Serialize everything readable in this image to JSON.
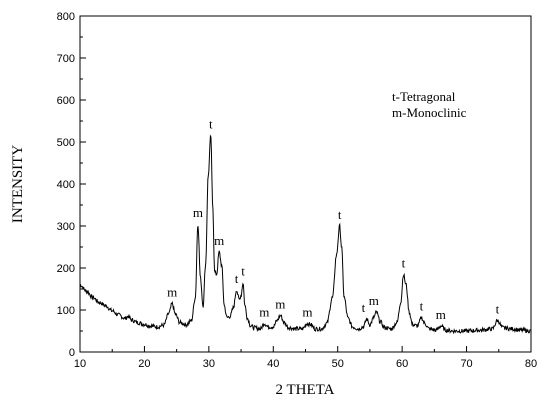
{
  "chart_data": {
    "type": "line",
    "xlabel": "2 THETA",
    "ylabel": "INTENSITY",
    "xlim": [
      10,
      80
    ],
    "ylim": [
      0,
      800
    ],
    "x_ticks": [
      "10",
      "20",
      "30",
      "40",
      "50",
      "60",
      "70",
      "80"
    ],
    "y_ticks": [
      "0",
      "100",
      "200",
      "300",
      "400",
      "500",
      "600",
      "700",
      "800"
    ],
    "legend_lines": [
      "t-Tetragonal",
      "m-Monoclinic"
    ],
    "legend_position": "top-right",
    "grid": false,
    "line_color": "#000000",
    "series": [
      {
        "x": [
          10,
          11,
          12,
          13,
          14,
          15,
          16,
          17,
          17.5,
          18,
          19,
          20,
          21,
          22,
          23,
          23.8,
          24.3,
          24.8,
          25.5,
          26.5,
          27.3,
          27.9,
          28.3,
          28.7,
          29.1,
          29.5,
          29.9,
          30.3,
          30.6,
          30.9,
          31.2,
          31.6,
          32.0,
          32.4,
          32.8,
          33.3,
          33.8,
          34.3,
          34.7,
          35.0,
          35.3,
          35.6,
          36.0,
          36.5,
          37.0,
          38.0,
          38.6,
          39.2,
          40.0,
          40.6,
          41.1,
          41.7,
          42.4,
          43.5,
          44.5,
          45.3,
          45.8,
          46.5,
          47.5,
          48.3,
          49.2,
          49.8,
          50.3,
          50.6,
          51.0,
          51.6,
          52.3,
          53.2,
          54.0,
          54.5,
          55.0,
          55.6,
          56.0,
          56.6,
          57.3,
          58.3,
          59.2,
          59.8,
          60.2,
          60.6,
          61.1,
          61.6,
          62.4,
          63.0,
          63.5,
          64.2,
          65.3,
          66.0,
          66.8,
          68.0,
          70.0,
          72.0,
          74.0,
          74.8,
          75.6,
          77.0,
          78.5,
          80.0
        ],
        "y": [
          160,
          145,
          130,
          118,
          110,
          98,
          88,
          80,
          85,
          76,
          70,
          66,
          62,
          60,
          64,
          92,
          115,
          90,
          70,
          65,
          75,
          130,
          305,
          175,
          110,
          210,
          420,
          515,
          350,
          190,
          185,
          238,
          205,
          110,
          82,
          85,
          105,
          148,
          125,
          135,
          165,
          110,
          80,
          62,
          58,
          55,
          68,
          60,
          60,
          75,
          87,
          70,
          58,
          55,
          55,
          68,
          65,
          55,
          55,
          68,
          130,
          230,
          300,
          250,
          130,
          80,
          60,
          55,
          60,
          78,
          65,
          82,
          95,
          72,
          58,
          55,
          70,
          120,
          185,
          160,
          95,
          65,
          62,
          82,
          68,
          55,
          52,
          62,
          52,
          50,
          50,
          52,
          55,
          75,
          58,
          55,
          52,
          50
        ]
      }
    ],
    "annotations": [
      {
        "text": "m",
        "x": 24.3,
        "y": 115
      },
      {
        "text": "m",
        "x": 28.3,
        "y": 305
      },
      {
        "text": "t",
        "x": 30.3,
        "y": 515
      },
      {
        "text": "m",
        "x": 31.6,
        "y": 238
      },
      {
        "text": "t",
        "x": 34.3,
        "y": 148
      },
      {
        "text": "t",
        "x": 35.3,
        "y": 165
      },
      {
        "text": "m",
        "x": 38.6,
        "y": 68
      },
      {
        "text": "m",
        "x": 41.1,
        "y": 87
      },
      {
        "text": "m",
        "x": 45.3,
        "y": 68
      },
      {
        "text": "t",
        "x": 50.3,
        "y": 300
      },
      {
        "text": "t",
        "x": 54.0,
        "y": 78
      },
      {
        "text": "m",
        "x": 55.6,
        "y": 95
      },
      {
        "text": "t",
        "x": 60.2,
        "y": 185
      },
      {
        "text": "t",
        "x": 63.0,
        "y": 82
      },
      {
        "text": "m",
        "x": 66.0,
        "y": 62
      },
      {
        "text": "t",
        "x": 74.8,
        "y": 75
      }
    ]
  }
}
